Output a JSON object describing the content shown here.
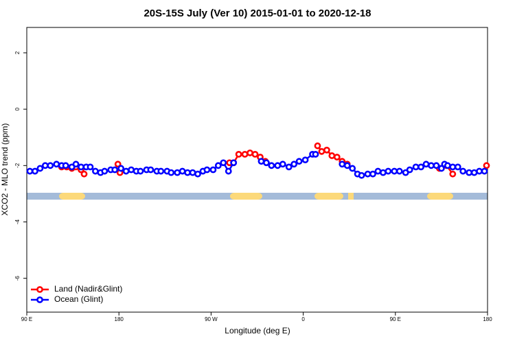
{
  "chart_data": {
    "type": "line",
    "title": "20S-15S July (Ver 10)   2015-01-01 to 2020-12-18",
    "x_label": "Longitude (deg E)",
    "y_label": "XCO2 - MLO trend (ppm)",
    "xlim": [
      90,
      540
    ],
    "ylim": [
      -7.2,
      2.9
    ],
    "xticks": [
      {
        "value": 90,
        "label": "90 E"
      },
      {
        "value": 180,
        "label": "180"
      },
      {
        "value": 270,
        "label": "90 W"
      },
      {
        "value": 360,
        "label": "0"
      },
      {
        "value": 450,
        "label": "90 E"
      },
      {
        "value": 540,
        "label": "180"
      }
    ],
    "yticks": [
      -6,
      -4,
      -2,
      0,
      2
    ],
    "grid": false,
    "legend": "bottom-left",
    "series": [
      {
        "name": "Land (Nadir&Glint)",
        "color": "#ff0000",
        "x": [
          124,
          129,
          134,
          138,
          143,
          146,
          160,
          179,
          181,
          250,
          288,
          292,
          297,
          303,
          308,
          313,
          318,
          323,
          350,
          374,
          378,
          383,
          388,
          393,
          398,
          403,
          450,
          493,
          500,
          506,
          520,
          539
        ],
        "values": [
          -2.05,
          -2.05,
          -2.1,
          -2.05,
          -2.15,
          -2.3,
          null,
          -1.95,
          -2.25,
          null,
          -1.9,
          -1.9,
          -1.6,
          -1.6,
          -1.55,
          -1.6,
          -1.7,
          -1.85,
          null,
          -1.3,
          -1.5,
          -1.45,
          -1.65,
          -1.7,
          -1.85,
          -1.95,
          null,
          -2.1,
          -2.0,
          -2.3,
          null,
          -2.0
        ]
      },
      {
        "name": "Ocean (Glint)",
        "color": "#0000ff",
        "x": [
          93,
          98,
          103,
          108,
          113,
          119,
          124,
          128,
          134,
          138,
          143,
          148,
          152,
          157,
          162,
          166,
          172,
          176,
          182,
          187,
          192,
          197,
          201,
          207,
          211,
          217,
          221,
          227,
          231,
          237,
          242,
          247,
          252,
          257,
          262,
          266,
          272,
          277,
          282,
          287,
          292,
          305,
          319,
          324,
          329,
          335,
          340,
          346,
          351,
          356,
          362,
          369,
          372,
          385,
          398,
          403,
          408,
          413,
          417,
          423,
          428,
          433,
          438,
          443,
          449,
          454,
          460,
          464,
          470,
          475,
          480,
          485,
          490,
          495,
          498,
          501,
          506,
          511,
          516,
          522,
          527,
          532,
          537
        ],
        "values": [
          -2.2,
          -2.2,
          -2.1,
          -2.0,
          -2.0,
          -1.95,
          -2.0,
          -2.0,
          -2.05,
          -1.95,
          -2.05,
          -2.05,
          -2.05,
          -2.2,
          -2.25,
          -2.2,
          -2.15,
          -2.15,
          -2.1,
          -2.2,
          -2.15,
          -2.2,
          -2.2,
          -2.15,
          -2.15,
          -2.2,
          -2.2,
          -2.2,
          -2.25,
          -2.25,
          -2.2,
          -2.25,
          -2.25,
          -2.3,
          -2.2,
          -2.15,
          -2.15,
          -2.0,
          -1.9,
          -2.2,
          -1.9,
          null,
          -1.85,
          -1.9,
          -2.0,
          -2.0,
          -1.95,
          -2.05,
          -1.95,
          -1.85,
          -1.8,
          -1.6,
          -1.6,
          null,
          -1.95,
          -2.0,
          -2.1,
          -2.3,
          -2.35,
          -2.3,
          -2.3,
          -2.2,
          -2.25,
          -2.2,
          -2.2,
          -2.2,
          -2.25,
          -2.15,
          -2.05,
          -2.05,
          -1.95,
          -2.0,
          -2.0,
          -2.1,
          -1.95,
          -2.0,
          -2.05,
          -2.05,
          -2.2,
          -2.25,
          -2.25,
          -2.2,
          -2.2
        ]
      }
    ]
  }
}
